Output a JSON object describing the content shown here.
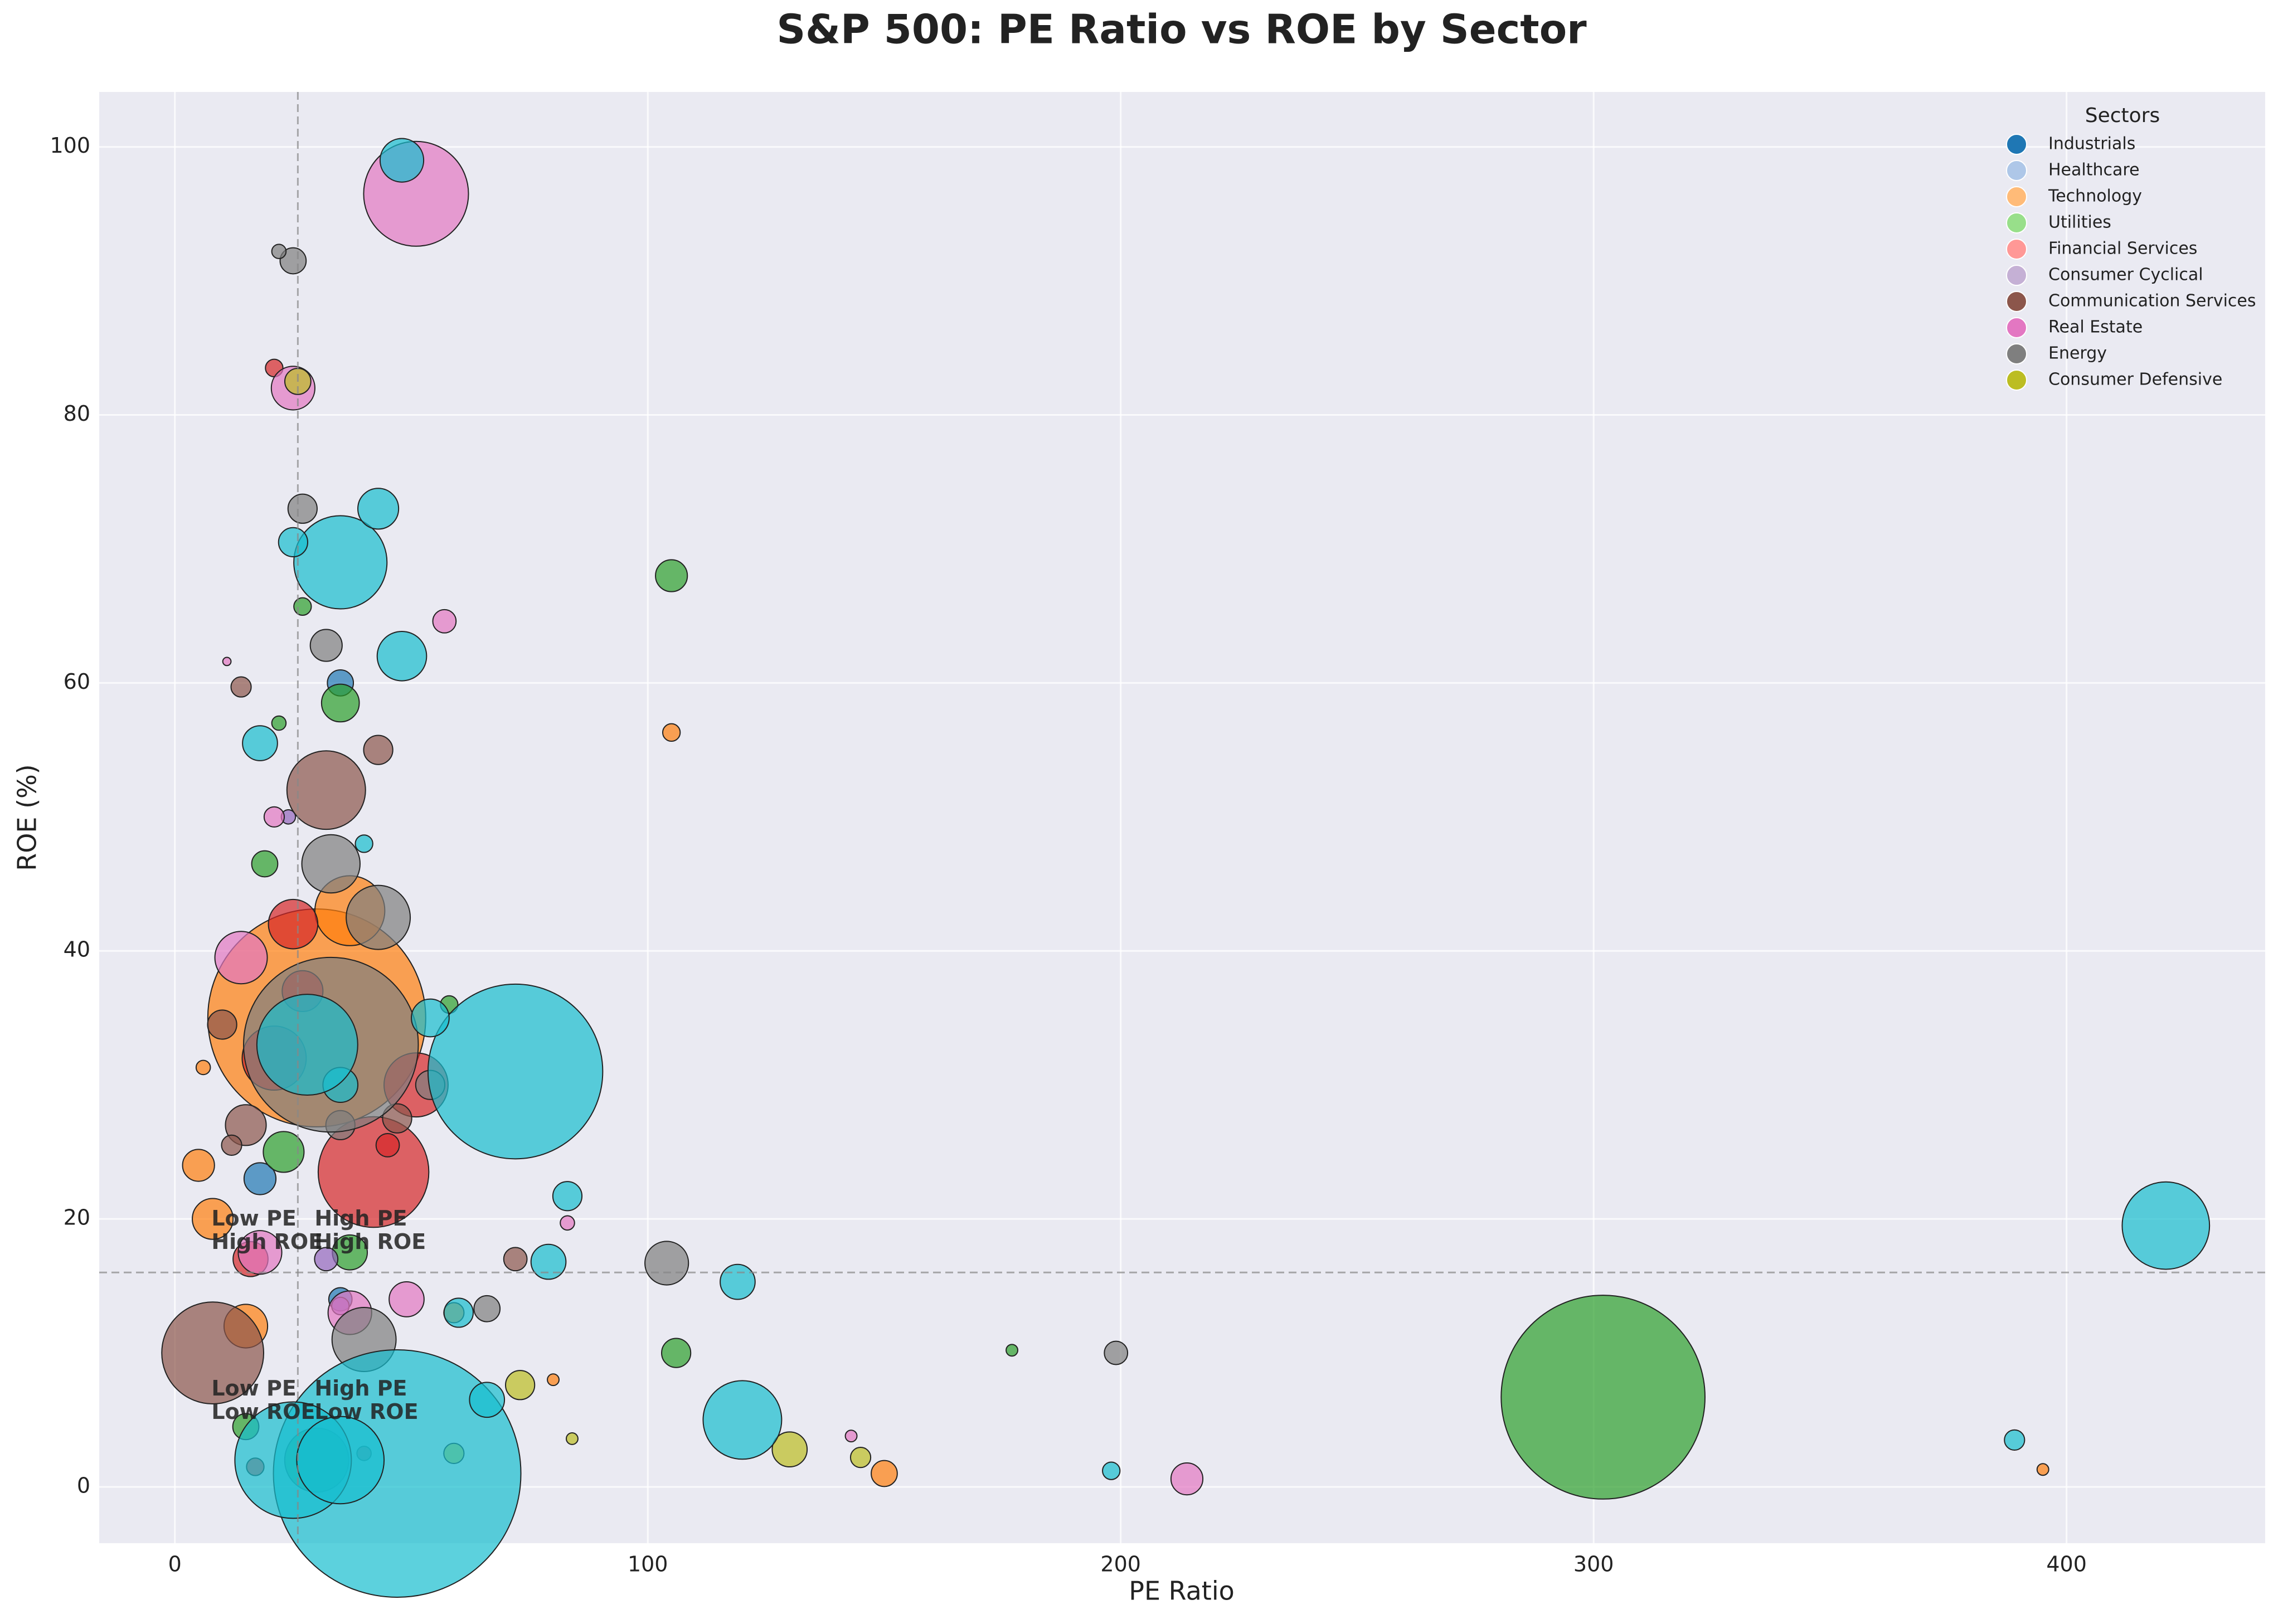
{
  "chart_data": {
    "type": "bubble",
    "title": "S&P 500: PE Ratio vs ROE by Sector",
    "x_label": "PE Ratio",
    "y_label": "ROE (%)",
    "xlim": [
      -16,
      442
    ],
    "ylim": [
      -4.2,
      104.1
    ],
    "xticks": [
      0,
      100,
      200,
      300,
      400
    ],
    "yticks": [
      0,
      20,
      40,
      60,
      80,
      100
    ],
    "grid": true,
    "median_pe": 26,
    "median_roe": 16,
    "annotations": [
      {
        "lines": [
          "Low PE",
          "High ROE"
        ],
        "quadrant": "upper-left"
      },
      {
        "lines": [
          "High PE",
          "High ROE"
        ],
        "quadrant": "upper-right"
      },
      {
        "lines": [
          "Low PE",
          "Low ROE"
        ],
        "quadrant": "lower-left"
      },
      {
        "lines": [
          "High PE",
          "Low ROE"
        ],
        "quadrant": "lower-right"
      }
    ],
    "legend_title": "Sectors",
    "legend_position": "upper right",
    "series": [
      {
        "name": "Industrials",
        "color": "#1f77b4",
        "legend_color": "#1f77b4",
        "x": [
          35,
          18,
          35
        ],
        "y": [
          60,
          23,
          14
        ],
        "sizes": [
          20,
          30,
          16
        ]
      },
      {
        "name": "Healthcare",
        "color": "#ff7f0e",
        "legend_color": "#aec7e8",
        "x": [
          30,
          37,
          5,
          8,
          15,
          59,
          150,
          395,
          105,
          6,
          80
        ],
        "y": [
          35,
          43,
          24,
          20,
          12,
          13,
          1,
          1.3,
          56.3,
          31.3,
          8
        ],
        "sizes": [
          1400,
          144,
          30,
          49,
          56,
          12,
          20,
          4,
          9,
          6,
          4
        ]
      },
      {
        "name": "Technology",
        "color": "#2ca02c",
        "legend_color": "#ffbb78",
        "x": [
          302,
          105,
          106,
          35,
          19,
          27,
          22,
          58,
          30,
          15,
          23,
          37,
          177
        ],
        "y": [
          6.7,
          68,
          10,
          58.5,
          46.5,
          65.7,
          57,
          36,
          2,
          4.5,
          25,
          17.5,
          10.2
        ],
        "sizes": [
          1225,
          30,
          25,
          42,
          20,
          9,
          6,
          9,
          121,
          20,
          49,
          36,
          4
        ]
      },
      {
        "name": "Utilities",
        "color": "#d62728",
        "legend_color": "#98df8a",
        "x": [
          21,
          25,
          21,
          42,
          51,
          27,
          45,
          16,
          17,
          40
        ],
        "y": [
          83.5,
          42,
          32,
          23.5,
          30,
          37,
          25.5,
          17,
          1.5,
          2.5
        ],
        "sizes": [
          9,
          72,
          121,
          361,
          121,
          49,
          16,
          36,
          9,
          6
        ]
      },
      {
        "name": "Financial Services",
        "color": "#9467bd",
        "legend_color": "#ff9896",
        "x": [
          24,
          32,
          35
        ],
        "y": [
          50,
          17,
          13.5
        ],
        "sizes": [
          6,
          16,
          9
        ]
      },
      {
        "name": "Consumer Cyclical",
        "color": "#8c564b",
        "legend_color": "#c5b0d5",
        "x": [
          32,
          43,
          14,
          10,
          15,
          8,
          72,
          47,
          12
        ],
        "y": [
          52,
          55,
          59.7,
          34.5,
          27,
          10,
          17,
          27.5,
          25.5
        ],
        "sizes": [
          182,
          25,
          12,
          25,
          49,
          306,
          16,
          25,
          12
        ]
      },
      {
        "name": "Communication Services",
        "color": "#e377c2",
        "legend_color": "#8c564b",
        "x": [
          51,
          25,
          57,
          21,
          14,
          18,
          214,
          49,
          83,
          143,
          11,
          37
        ],
        "y": [
          96.5,
          82,
          64.6,
          50,
          39.5,
          17.5,
          0.6,
          14,
          19.7,
          3.8,
          61.6,
          13
        ],
        "sizes": [
          324,
          56,
          16,
          12,
          81,
          56,
          30,
          36,
          6,
          4,
          2,
          56
        ]
      },
      {
        "name": "Real Estate",
        "color": "#7f7f7f",
        "legend_color": "#e377c2",
        "x": [
          25,
          22,
          27,
          32,
          33,
          43,
          104,
          199,
          54,
          66,
          35,
          40,
          33
        ],
        "y": [
          91.5,
          92.2,
          73,
          62.8,
          46.5,
          42.5,
          16.7,
          10,
          30,
          13.3,
          27,
          11,
          33
        ],
        "sizes": [
          20,
          6,
          25,
          30,
          100,
          121,
          56,
          16,
          25,
          20,
          25,
          121,
          900
        ]
      },
      {
        "name": "Energy",
        "color": "#bcbd22",
        "legend_color": "#7f7f7f",
        "x": [
          26,
          130,
          73,
          145,
          84,
          59
        ],
        "y": [
          82.5,
          2.8,
          7.6,
          2.2,
          3.6,
          2.5
        ],
        "sizes": [
          20,
          36,
          25,
          12,
          4,
          12
        ]
      },
      {
        "name": "Consumer Defensive",
        "color": "#17becf",
        "legend_color": "#bcbd22",
        "x": [
          48,
          35,
          43,
          48,
          25,
          72,
          47,
          25,
          35,
          120,
          421,
          119,
          83,
          79,
          389,
          198,
          18,
          54,
          35,
          60,
          66,
          40,
          28
        ],
        "y": [
          99,
          69,
          73,
          62,
          70.5,
          31,
          1,
          2,
          2,
          5,
          19.5,
          15.3,
          21.7,
          16.8,
          3.5,
          1.2,
          55.5,
          35,
          30,
          13,
          6.5,
          48,
          33
        ],
        "sizes": [
          56,
          256,
          49,
          72,
          25,
          900,
          1806,
          400,
          225,
          182,
          225,
          36,
          25,
          36,
          12,
          9,
          36,
          42,
          36,
          25,
          36,
          9,
          300
        ]
      }
    ]
  }
}
